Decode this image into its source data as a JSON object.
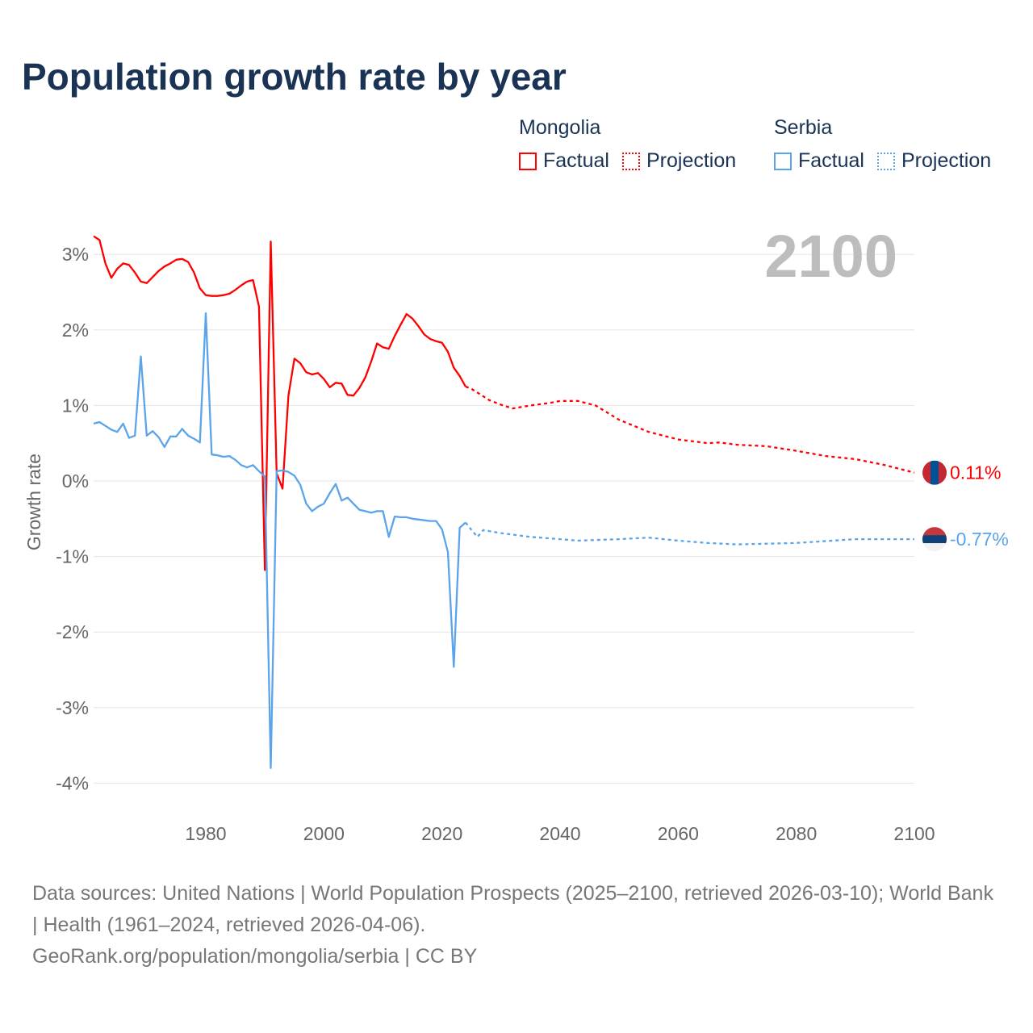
{
  "chart_data": {
    "type": "line",
    "title": "Population growth rate by year",
    "ylabel": "Growth rate",
    "xlabel": "",
    "xlim": [
      1961,
      2100
    ],
    "ylim": [
      -4.3,
      3.4
    ],
    "xticks": [
      1980,
      2000,
      2020,
      2040,
      2060,
      2080,
      2100
    ],
    "yticks": [
      3,
      2,
      1,
      0,
      -1,
      -2,
      -3,
      -4
    ],
    "ytick_labels": [
      "3%",
      "2%",
      "1%",
      "0%",
      "-1%",
      "-2%",
      "-3%",
      "-4%"
    ],
    "grid": true,
    "year_label": "2100",
    "legend": {
      "placement": "top-right",
      "groups": [
        {
          "country": "Mongolia",
          "factual": "Factual",
          "projection": "Projection"
        },
        {
          "country": "Serbia",
          "factual": "Factual",
          "projection": "Projection"
        }
      ]
    },
    "series": [
      {
        "name": "Mongolia",
        "color": "#ff0000",
        "end_label": "0.11%",
        "factual": {
          "x": [
            1961,
            1962,
            1963,
            1964,
            1965,
            1966,
            1967,
            1968,
            1969,
            1970,
            1971,
            1972,
            1973,
            1974,
            1975,
            1976,
            1977,
            1978,
            1979,
            1980,
            1981,
            1982,
            1983,
            1984,
            1985,
            1986,
            1987,
            1988,
            1989,
            1990,
            1991,
            1992,
            1993,
            1994,
            1995,
            1996,
            1997,
            1998,
            1999,
            2000,
            2001,
            2002,
            2003,
            2004,
            2005,
            2006,
            2007,
            2008,
            2009,
            2010,
            2011,
            2012,
            2013,
            2014,
            2015,
            2016,
            2017,
            2018,
            2019,
            2020,
            2021,
            2022,
            2023,
            2024
          ],
          "y": [
            3.24,
            3.19,
            2.88,
            2.69,
            2.81,
            2.88,
            2.86,
            2.76,
            2.64,
            2.62,
            2.7,
            2.78,
            2.84,
            2.88,
            2.93,
            2.94,
            2.9,
            2.76,
            2.55,
            2.46,
            2.45,
            2.45,
            2.46,
            2.48,
            2.53,
            2.59,
            2.64,
            2.66,
            2.31,
            -1.18,
            3.17,
            0.1,
            -0.1,
            1.13,
            1.62,
            1.56,
            1.44,
            1.41,
            1.43,
            1.35,
            1.24,
            1.3,
            1.29,
            1.14,
            1.13,
            1.23,
            1.37,
            1.58,
            1.82,
            1.77,
            1.75,
            1.92,
            2.07,
            2.21,
            2.15,
            2.05,
            1.94,
            1.88,
            1.85,
            1.83,
            1.71,
            1.5,
            1.39,
            1.25
          ]
        },
        "projection": {
          "x": [
            2024,
            2025,
            2028,
            2030,
            2032,
            2035,
            2038,
            2040,
            2043,
            2046,
            2050,
            2055,
            2060,
            2065,
            2067,
            2070,
            2075,
            2080,
            2085,
            2090,
            2095,
            2100
          ],
          "y": [
            1.25,
            1.22,
            1.07,
            1.01,
            0.96,
            1.0,
            1.03,
            1.06,
            1.06,
            1.0,
            0.81,
            0.65,
            0.55,
            0.5,
            0.51,
            0.48,
            0.46,
            0.4,
            0.33,
            0.29,
            0.21,
            0.11
          ]
        }
      },
      {
        "name": "Serbia",
        "color": "#5ba4ea",
        "end_label": "-0.77%",
        "factual": {
          "x": [
            1961,
            1962,
            1963,
            1964,
            1965,
            1966,
            1967,
            1968,
            1969,
            1970,
            1971,
            1972,
            1973,
            1974,
            1975,
            1976,
            1977,
            1978,
            1979,
            1980,
            1981,
            1982,
            1983,
            1984,
            1985,
            1986,
            1987,
            1988,
            1989,
            1990,
            1991,
            1992,
            1993,
            1994,
            1995,
            1996,
            1997,
            1998,
            1999,
            2000,
            2001,
            2002,
            2003,
            2004,
            2005,
            2006,
            2007,
            2008,
            2009,
            2010,
            2011,
            2012,
            2013,
            2014,
            2015,
            2016,
            2017,
            2018,
            2019,
            2020,
            2021,
            2022,
            2023,
            2024
          ],
          "y": [
            0.76,
            0.78,
            0.73,
            0.68,
            0.65,
            0.76,
            0.57,
            0.6,
            1.65,
            0.6,
            0.66,
            0.58,
            0.45,
            0.59,
            0.59,
            0.69,
            0.6,
            0.56,
            0.51,
            2.22,
            0.35,
            0.34,
            0.32,
            0.33,
            0.28,
            0.21,
            0.18,
            0.21,
            0.13,
            0.06,
            -3.8,
            0.13,
            0.14,
            0.12,
            0.07,
            -0.05,
            -0.3,
            -0.4,
            -0.34,
            -0.3,
            -0.16,
            -0.04,
            -0.26,
            -0.22,
            -0.3,
            -0.38,
            -0.4,
            -0.42,
            -0.4,
            -0.4,
            -0.74,
            -0.47,
            -0.48,
            -0.48,
            -0.5,
            -0.51,
            -0.52,
            -0.53,
            -0.53,
            -0.64,
            -0.94,
            -2.46,
            -0.62,
            -0.55
          ]
        },
        "projection": {
          "x": [
            2024,
            2025,
            2026,
            2027,
            2030,
            2035,
            2040,
            2043,
            2050,
            2055,
            2060,
            2065,
            2070,
            2080,
            2090,
            2100
          ],
          "y": [
            -0.55,
            -0.65,
            -0.74,
            -0.65,
            -0.69,
            -0.74,
            -0.77,
            -0.79,
            -0.77,
            -0.75,
            -0.79,
            -0.82,
            -0.84,
            -0.82,
            -0.77,
            -0.77
          ]
        }
      }
    ]
  },
  "footer": {
    "sources": "Data sources: United Nations | World Population Prospects (2025–2100, retrieved 2026-03-10); World Bank | Health (1961–2024, retrieved 2026-04-06).",
    "credit": "GeoRank.org/population/mongolia/serbia | CC BY"
  }
}
